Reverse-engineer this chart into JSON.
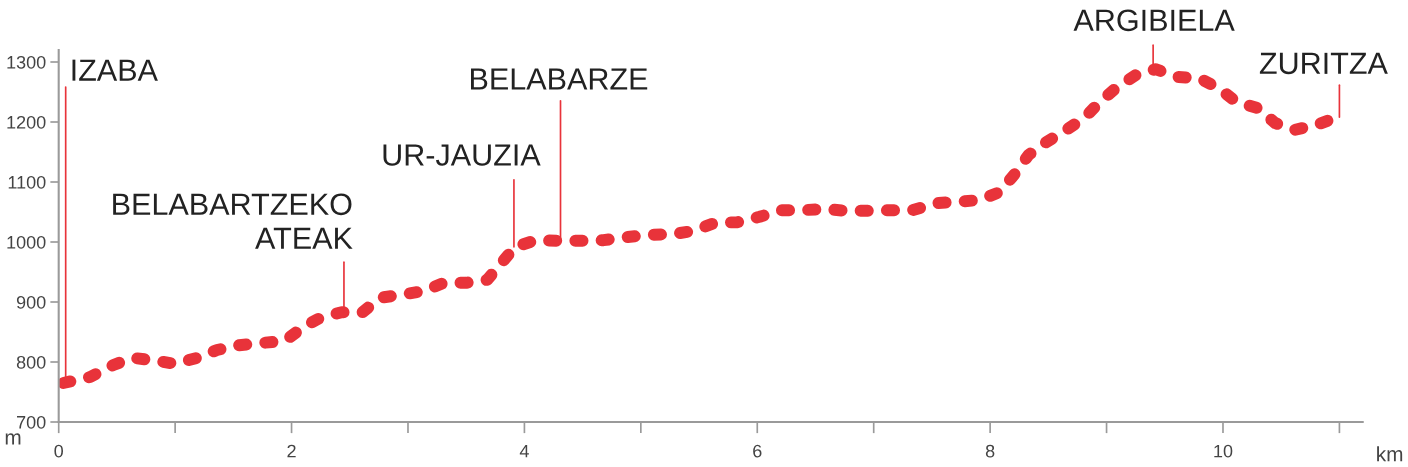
{
  "chart_data": {
    "type": "line",
    "xlabel": "km",
    "ylabel": "m",
    "xlim": [
      0,
      11.2
    ],
    "ylim": [
      700,
      1320
    ],
    "xticks": [
      0,
      {
        "value": 1,
        "label": null
      },
      2,
      {
        "value": 3,
        "label": null
      },
      4,
      {
        "value": 5,
        "label": null
      },
      6,
      {
        "value": 7,
        "label": null
      },
      8,
      {
        "value": 9,
        "label": null
      },
      10,
      {
        "value": 11,
        "label": null
      }
    ],
    "yticks": [
      700,
      800,
      900,
      1000,
      1100,
      1200,
      1300
    ],
    "grid": false,
    "line_style": "dashed",
    "series": [
      {
        "color": "#e8333a",
        "x": [
          0.04,
          0.27,
          0.47,
          0.63,
          0.81,
          1.0,
          1.19,
          1.36,
          1.55,
          1.76,
          1.94,
          2.1,
          2.24,
          2.43,
          2.61,
          2.76,
          2.94,
          3.13,
          3.31,
          3.5,
          3.68,
          3.79,
          3.92,
          4.1,
          4.3,
          4.5,
          4.68,
          4.87,
          5.07,
          5.27,
          5.44,
          5.64,
          5.83,
          6.02,
          6.21,
          6.39,
          6.58,
          6.76,
          6.94,
          7.13,
          7.33,
          7.55,
          7.73,
          7.91,
          8.08,
          8.21,
          8.33,
          8.47,
          8.64,
          8.81,
          8.94,
          9.09,
          9.25,
          9.42,
          9.61,
          9.8,
          9.97,
          10.12,
          10.3,
          10.45,
          10.62,
          10.8,
          10.98
        ],
        "values": [
          765,
          775,
          795,
          807,
          803,
          797,
          807,
          820,
          828,
          832,
          835,
          858,
          873,
          883,
          883,
          907,
          912,
          918,
          932,
          932,
          937,
          962,
          992,
          1003,
          1002,
          1002,
          1003,
          1008,
          1012,
          1013,
          1018,
          1032,
          1033,
          1042,
          1053,
          1053,
          1055,
          1052,
          1052,
          1053,
          1053,
          1065,
          1067,
          1070,
          1083,
          1113,
          1145,
          1165,
          1185,
          1207,
          1233,
          1258,
          1278,
          1288,
          1275,
          1273,
          1255,
          1233,
          1223,
          1198,
          1187,
          1195,
          1208
        ]
      }
    ],
    "annotations": [
      {
        "text": "IZABA",
        "x": 0.06,
        "y": 765
      },
      {
        "text": "BELABARTZEKO\nATEAK",
        "x": 2.45,
        "y": 883
      },
      {
        "text": "UR-JAUZIA",
        "x": 3.91,
        "y": 992
      },
      {
        "text": "BELABARZE",
        "x": 4.31,
        "y": 1002
      },
      {
        "text": "ARGIBIELA",
        "x": 9.4,
        "y": 1288
      },
      {
        "text": "ZURITZA",
        "x": 11.0,
        "y": 1208
      }
    ]
  }
}
